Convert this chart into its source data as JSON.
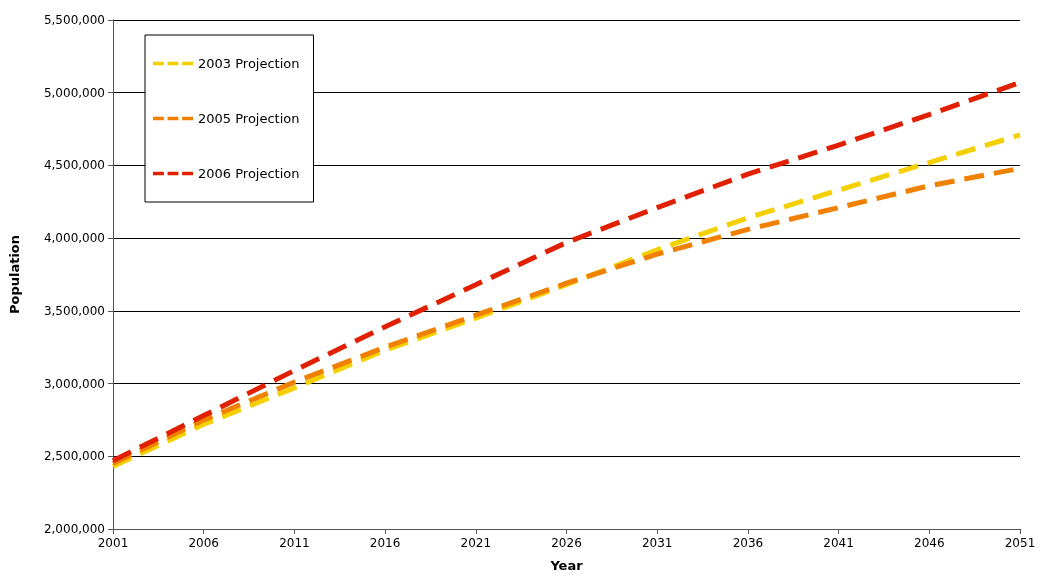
{
  "chart_data": {
    "type": "line",
    "xlabel": "Year",
    "ylabel": "Population",
    "x": [
      2001,
      2006,
      2011,
      2016,
      2021,
      2026,
      2031,
      2036,
      2041,
      2046,
      2051
    ],
    "series": [
      {
        "name": "2003 Projection",
        "color": "#f5d000",
        "values": [
          2430000,
          2720000,
          2970000,
          3230000,
          3450000,
          3680000,
          3920000,
          4140000,
          4330000,
          4520000,
          4710000
        ]
      },
      {
        "name": "2005 Projection",
        "color": "#f08000",
        "values": [
          2450000,
          2750000,
          3010000,
          3250000,
          3470000,
          3690000,
          3890000,
          4060000,
          4210000,
          4360000,
          4480000
        ]
      },
      {
        "name": "2006 Projection",
        "color": "#e02000",
        "values": [
          2470000,
          2780000,
          3090000,
          3390000,
          3680000,
          3970000,
          4210000,
          4440000,
          4640000,
          4850000,
          5070000
        ]
      }
    ],
    "xlim": [
      2001,
      2051
    ],
    "xticks": [
      2001,
      2006,
      2011,
      2016,
      2021,
      2026,
      2031,
      2036,
      2041,
      2046,
      2051
    ],
    "ylim": [
      2000000,
      5500000
    ],
    "yticks": [
      {
        "value": 2000000,
        "label": "2,000,000"
      },
      {
        "value": 2500000,
        "label": "2,500,000"
      },
      {
        "value": 3000000,
        "label": "3,000,000"
      },
      {
        "value": 3500000,
        "label": "3,500,000"
      },
      {
        "value": 4000000,
        "label": "4,000,000"
      },
      {
        "value": 4500000,
        "label": "4,500,000"
      },
      {
        "value": 5000000,
        "label": "5,000,000"
      },
      {
        "value": 5500000,
        "label": "5,500,000"
      }
    ],
    "grid": "y",
    "legend": "top left",
    "marker": "none",
    "line_style": "dashed"
  }
}
